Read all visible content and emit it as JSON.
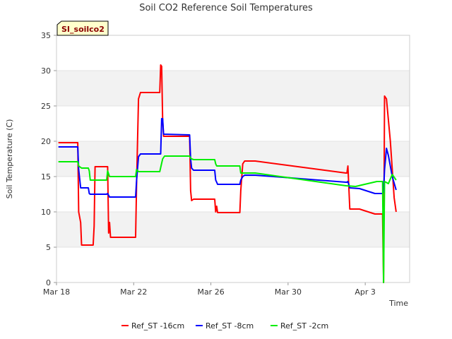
{
  "chart_data": {
    "type": "line",
    "title": "Soil CO2 Reference Soil Temperatures",
    "xlabel": "Time",
    "ylabel": "Soil Temperature (C)",
    "badge": "SI_soilco2",
    "xlim": [
      0,
      18.3
    ],
    "ylim": [
      0,
      35
    ],
    "yticks": [
      0,
      5,
      10,
      15,
      20,
      25,
      30,
      35
    ],
    "xticks": [
      {
        "value": 0,
        "label": "Mar 18"
      },
      {
        "value": 4,
        "label": "Mar 22"
      },
      {
        "value": 8,
        "label": "Mar 26"
      },
      {
        "value": 12,
        "label": "Mar 30"
      },
      {
        "value": 16,
        "label": "Apr 3"
      }
    ],
    "bands": [
      [
        5,
        10
      ],
      [
        15,
        20
      ],
      [
        25,
        30
      ]
    ],
    "legend_position": "bottom",
    "series": [
      {
        "name": "Ref_ST -16cm",
        "color": "#ff0000",
        "x": [
          0.1,
          1.1,
          1.15,
          1.25,
          1.3,
          1.35,
          1.9,
          1.95,
          2.0,
          2.6,
          2.65,
          2.7,
          2.75,
          2.8,
          4.1,
          4.15,
          4.25,
          4.35,
          5.35,
          5.4,
          5.45,
          5.5,
          5.55,
          6.9,
          6.95,
          7.0,
          7.1,
          8.2,
          8.25,
          8.3,
          8.35,
          9.5,
          9.55,
          9.65,
          9.75,
          10.3,
          15.0,
          15.05,
          15.1,
          15.2,
          15.7,
          16.5,
          16.9,
          16.95,
          17.0,
          17.1,
          17.3,
          17.5,
          17.6
        ],
        "y": [
          19.8,
          19.8,
          10.0,
          8.5,
          5.3,
          5.3,
          5.3,
          8.0,
          16.4,
          16.4,
          16.4,
          7.0,
          8.5,
          6.4,
          6.4,
          14.0,
          26.0,
          26.9,
          26.9,
          30.8,
          30.6,
          23.0,
          20.7,
          20.7,
          13.0,
          11.6,
          11.8,
          11.8,
          10.0,
          10.8,
          9.9,
          9.9,
          13.0,
          16.8,
          17.2,
          17.2,
          15.5,
          15.5,
          16.5,
          10.4,
          10.4,
          9.7,
          9.7,
          0.0,
          26.4,
          26.0,
          20.0,
          12.0,
          10.0
        ]
      },
      {
        "name": "Ref_ST -8cm",
        "color": "#0000ff",
        "x": [
          0.1,
          1.1,
          1.15,
          1.25,
          1.65,
          1.7,
          1.75,
          2.6,
          2.65,
          2.75,
          4.1,
          4.15,
          4.25,
          4.35,
          5.4,
          5.45,
          5.5,
          5.55,
          6.9,
          6.95,
          7.0,
          7.1,
          8.2,
          8.25,
          8.3,
          8.35,
          9.5,
          9.55,
          9.65,
          9.75,
          10.3,
          15.0,
          15.05,
          15.1,
          15.2,
          15.7,
          16.5,
          16.9,
          16.95,
          17.0,
          17.1,
          17.2,
          17.4,
          17.6
        ],
        "y": [
          19.2,
          19.2,
          16.0,
          13.4,
          13.4,
          12.6,
          12.5,
          12.5,
          12.6,
          12.1,
          12.1,
          14.5,
          17.8,
          18.2,
          18.2,
          23.2,
          23.2,
          21.0,
          20.9,
          17.5,
          16.2,
          15.9,
          15.9,
          14.5,
          14.2,
          13.9,
          13.9,
          14.5,
          15.0,
          15.2,
          15.2,
          14.2,
          14.2,
          14.3,
          13.4,
          13.3,
          12.6,
          12.6,
          13.0,
          16.0,
          19.0,
          18.0,
          15.0,
          13.1
        ]
      },
      {
        "name": "Ref_ST -2cm",
        "color": "#00ee00",
        "x": [
          0.1,
          1.1,
          1.15,
          1.3,
          1.65,
          1.7,
          1.75,
          2.6,
          2.65,
          2.75,
          4.1,
          4.15,
          4.25,
          5.35,
          5.5,
          5.6,
          6.9,
          6.95,
          7.0,
          7.1,
          8.2,
          8.25,
          8.3,
          9.5,
          9.55,
          9.65,
          10.3,
          15.0,
          15.5,
          16.6,
          16.9,
          16.95,
          17.0,
          17.2,
          17.4,
          17.6
        ],
        "y": [
          17.1,
          17.1,
          16.5,
          16.2,
          16.2,
          15.8,
          14.5,
          14.5,
          15.8,
          15.0,
          15.0,
          16.0,
          15.7,
          15.7,
          17.5,
          17.9,
          17.9,
          17.6,
          17.5,
          17.4,
          17.4,
          16.8,
          16.5,
          16.5,
          15.5,
          15.5,
          15.5,
          13.7,
          13.6,
          14.3,
          14.3,
          0.0,
          14.3,
          14.0,
          15.3,
          14.5
        ]
      }
    ]
  }
}
